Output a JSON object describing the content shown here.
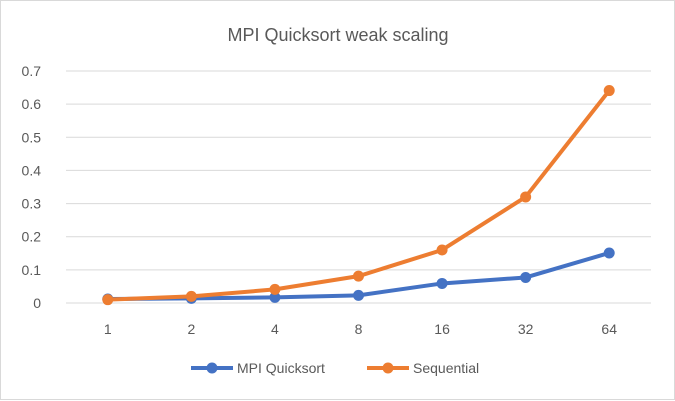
{
  "chart_data": {
    "type": "line",
    "title": "MPI Quicksort weak scaling",
    "xlabel": "",
    "ylabel": "",
    "categories": [
      "1",
      "2",
      "4",
      "8",
      "16",
      "32",
      "64"
    ],
    "series": [
      {
        "name": "MPI Quicksort",
        "color": "#4472c4",
        "values": [
          0.012,
          0.014,
          0.017,
          0.023,
          0.059,
          0.077,
          0.151
        ]
      },
      {
        "name": "Sequential",
        "color": "#ed7d31",
        "values": [
          0.01,
          0.02,
          0.041,
          0.081,
          0.16,
          0.32,
          0.641
        ]
      }
    ],
    "ylim": [
      0,
      0.7
    ],
    "yticks": [
      "0",
      "0.1",
      "0.2",
      "0.3",
      "0.4",
      "0.5",
      "0.6",
      "0.7"
    ],
    "grid": true,
    "legend": "bottom"
  }
}
